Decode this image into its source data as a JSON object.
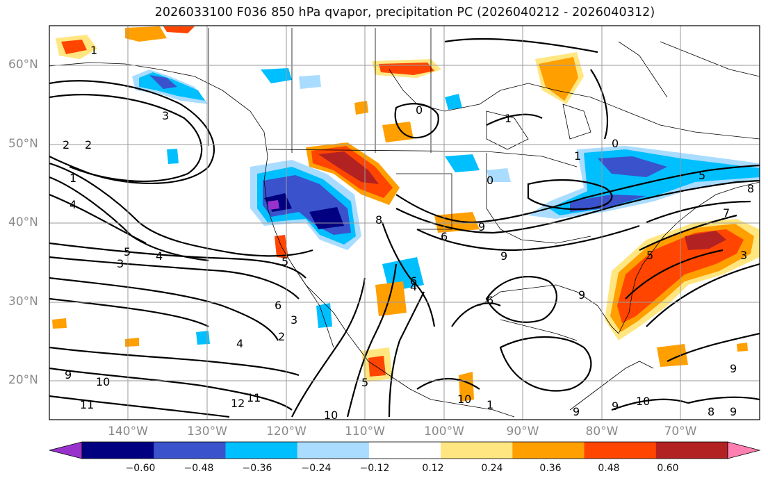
{
  "title": "2026033100 F036 850 hPa qvapor, precipitation PC (2026040212 - 2026040312)",
  "lat_labels": [
    "60°N",
    "50°N",
    "40°N",
    "30°N",
    "20°N"
  ],
  "lon_labels": [
    "140°W",
    "130°W",
    "120°W",
    "110°W",
    "100°W",
    "90°W",
    "80°W",
    "70°W"
  ],
  "colorbar": {
    "ticks": [
      "−0.60",
      "−0.48",
      "−0.36",
      "−0.24",
      "−0.12",
      "0.12",
      "0.24",
      "0.36",
      "0.48",
      "0.60"
    ],
    "colors": [
      "#9932cc",
      "#000080",
      "#3a52cc",
      "#00bfff",
      "#aadcff",
      "#ffffff",
      "#ffe680",
      "#ff9f00",
      "#ff4500",
      "#b22222",
      "#ff80b0"
    ]
  },
  "contour_labels": [
    "1",
    "3",
    "2",
    "2",
    "1",
    "4",
    "5",
    "4",
    "3",
    "0",
    "1",
    "0",
    "1",
    "0",
    "5",
    "8",
    "7",
    "6",
    "9",
    "8",
    "9",
    "9",
    "6",
    "2",
    "3",
    "4",
    "6",
    "5",
    "5",
    "9",
    "10",
    "11",
    "12",
    "11",
    "10",
    "10",
    "9",
    "9",
    "10",
    "9",
    "8",
    "9",
    "1",
    "6",
    "5",
    "3",
    "4"
  ]
}
